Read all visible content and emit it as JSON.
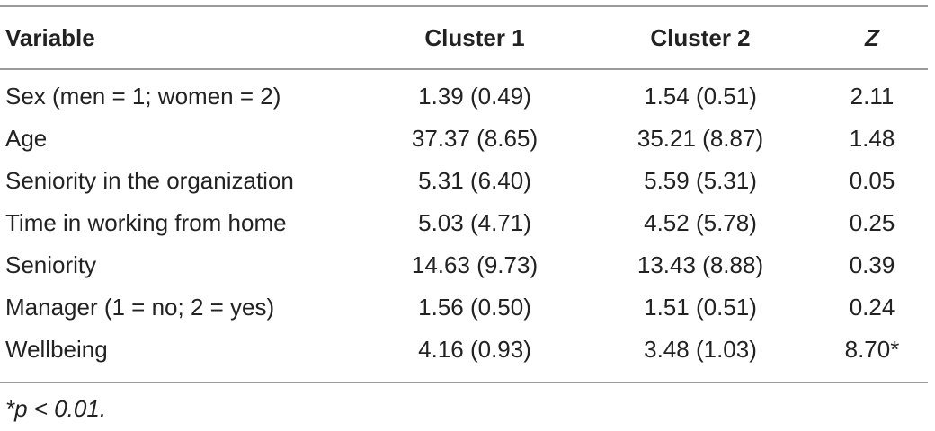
{
  "table": {
    "header": [
      "Variable",
      "Cluster 1",
      "Cluster 2",
      "Z"
    ],
    "rows": [
      [
        "Sex (men = 1; women = 2)",
        "1.39 (0.49)",
        "1.54 (0.51)",
        "2.11"
      ],
      [
        "Age",
        "37.37 (8.65)",
        "35.21 (8.87)",
        "1.48"
      ],
      [
        "Seniority in the organization",
        "5.31 (6.40)",
        "5.59 (5.31)",
        "0.05"
      ],
      [
        "Time in working from home",
        "5.03 (4.71)",
        "4.52 (5.78)",
        "0.25"
      ],
      [
        "Seniority",
        "14.63 (9.73)",
        "13.43 (8.88)",
        "0.39"
      ],
      [
        "Manager (1 = no; 2 = yes)",
        "1.56 (0.50)",
        "1.51 (0.51)",
        "0.24"
      ],
      [
        "Wellbeing",
        "4.16 (0.93)",
        "3.48 (1.03)",
        "8.70*"
      ]
    ],
    "footnote": "*p < 0.01."
  }
}
